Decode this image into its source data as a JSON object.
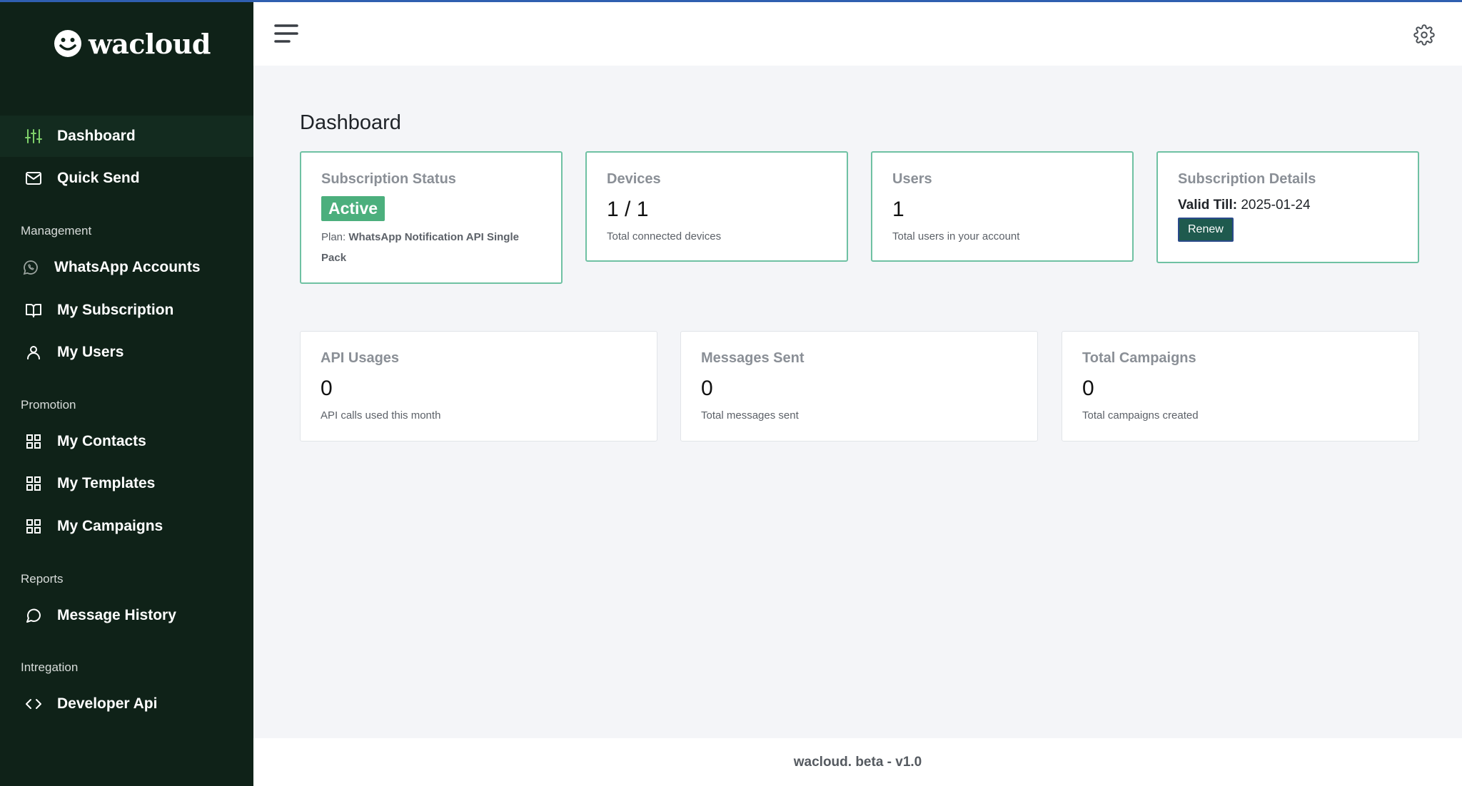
{
  "brand": {
    "name": "wacloud"
  },
  "sidebar": {
    "main_items": [
      {
        "label": "Dashboard",
        "icon": "sliders-icon",
        "active": true
      },
      {
        "label": "Quick Send",
        "icon": "envelope-icon"
      }
    ],
    "sections": [
      {
        "label": "Management",
        "items": [
          {
            "label": "WhatsApp Accounts",
            "icon": "whatsapp-icon"
          },
          {
            "label": "My Subscription",
            "icon": "book-icon"
          },
          {
            "label": "My Users",
            "icon": "user-icon"
          }
        ]
      },
      {
        "label": "Promotion",
        "items": [
          {
            "label": "My Contacts",
            "icon": "grid-icon"
          },
          {
            "label": "My Templates",
            "icon": "grid-icon"
          },
          {
            "label": "My Campaigns",
            "icon": "grid-icon"
          }
        ]
      },
      {
        "label": "Reports",
        "items": [
          {
            "label": "Message History",
            "icon": "chat-bubble-icon"
          }
        ]
      },
      {
        "label": "Intregation",
        "items": [
          {
            "label": "Developer Api",
            "icon": "code-icon"
          }
        ]
      }
    ]
  },
  "page": {
    "title": "Dashboard"
  },
  "cards": {
    "subscription_status": {
      "title": "Subscription Status",
      "badge": "Active",
      "plan_prefix": "Plan:",
      "plan_name": "WhatsApp Notification API Single Pack"
    },
    "devices": {
      "title": "Devices",
      "value": "1 / 1",
      "sub": "Total connected devices"
    },
    "users": {
      "title": "Users",
      "value": "1",
      "sub": "Total users in your account"
    },
    "subscription_details": {
      "title": "Subscription Details",
      "valid_label": "Valid Till:",
      "valid_value": "2025-01-24",
      "renew_label": "Renew"
    },
    "api_usages": {
      "title": "API Usages",
      "value": "0",
      "sub": "API calls used this month"
    },
    "messages_sent": {
      "title": "Messages Sent",
      "value": "0",
      "sub": "Total messages sent"
    },
    "total_campaigns": {
      "title": "Total Campaigns",
      "value": "0",
      "sub": "Total campaigns created"
    }
  },
  "footer": {
    "text": "wacloud. beta - v1.0"
  },
  "colors": {
    "sidebar_bg": "#0f2218",
    "accent_green": "#4caf7d",
    "card_border": "#6fc1a3",
    "active_icon": "#7fd06a"
  }
}
